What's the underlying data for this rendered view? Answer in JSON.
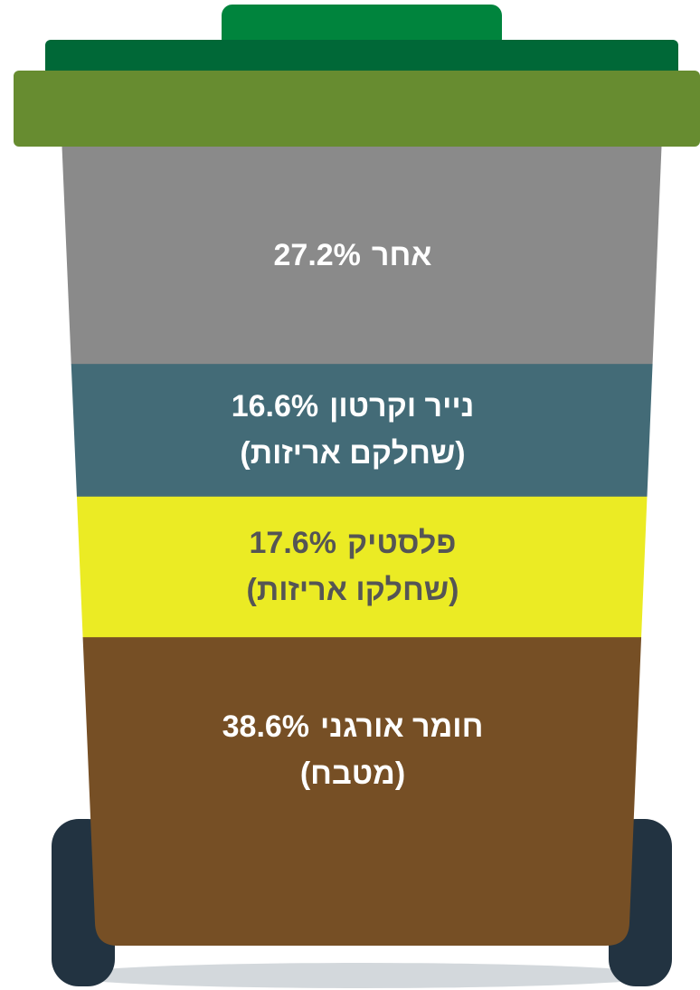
{
  "chart_data": {
    "type": "bin",
    "categories": [
      "אחר",
      "נייר וקרטון",
      "פלסטיק",
      "חומר אורגני"
    ],
    "notes": [
      null,
      "(שחלקם אריזות)",
      "(שחלקו אריזות)",
      "(מטבח)"
    ],
    "values": [
      27.2,
      16.6,
      17.6,
      38.6
    ],
    "value_labels": [
      "27.2%",
      "16.6%",
      "17.6%",
      "38.6%"
    ],
    "colors": [
      "#8a8a8a",
      "#436b77",
      "#ebeb24",
      "#764f25"
    ],
    "label_colors": [
      "#ffffff",
      "#ffffff",
      "#555555",
      "#ffffff"
    ]
  }
}
